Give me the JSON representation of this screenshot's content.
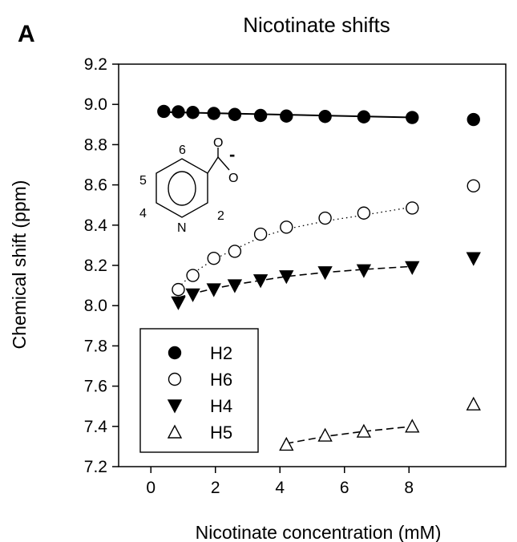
{
  "panel_label": "A",
  "chart_data": {
    "type": "scatter",
    "title": "Nicotinate shifts",
    "xlabel": "Nicotinate concentration (mM)",
    "ylabel": "Chemical shift (ppm)",
    "xlim": [
      -1,
      11
    ],
    "ylim": [
      7.2,
      9.2
    ],
    "x_ticks": [
      0,
      2,
      4,
      6,
      8
    ],
    "x_tick_labels": [
      "0",
      "2",
      "4",
      "6",
      "8"
    ],
    "y_ticks": [
      7.2,
      7.4,
      7.6,
      7.8,
      8.0,
      8.2,
      8.4,
      8.6,
      8.8,
      9.0,
      9.2
    ],
    "y_tick_labels": [
      "7.2",
      "7.4",
      "7.6",
      "7.8",
      "8.0",
      "8.2",
      "8.4",
      "8.6",
      "8.8",
      "9.0",
      "9.2"
    ],
    "grid": false,
    "legend_position": "bottom-left",
    "series": [
      {
        "name": "H2",
        "marker": "circle-filled",
        "line": "solid",
        "color": "#000000",
        "x": [
          0.4,
          0.85,
          1.3,
          1.95,
          2.6,
          3.4,
          4.2,
          5.4,
          6.6,
          8.1,
          10.0
        ],
        "y": [
          8.965,
          8.963,
          8.96,
          8.955,
          8.95,
          8.945,
          8.942,
          8.94,
          8.938,
          8.935,
          8.925
        ],
        "fit_x": [
          0.4,
          8.1
        ],
        "fit_y": [
          8.962,
          8.935
        ]
      },
      {
        "name": "H6",
        "marker": "circle-open",
        "line": "dotted",
        "color": "#000000",
        "x": [
          0.85,
          1.3,
          1.95,
          2.6,
          3.4,
          4.2,
          5.4,
          6.6,
          8.1,
          10.0
        ],
        "y": [
          8.08,
          8.15,
          8.235,
          8.27,
          8.355,
          8.39,
          8.435,
          8.46,
          8.485,
          8.595
        ],
        "fit_x": [
          0.85,
          1.3,
          1.95,
          2.6,
          3.4,
          4.2,
          5.4,
          6.6,
          8.1
        ],
        "fit_y": [
          8.09,
          8.16,
          8.23,
          8.28,
          8.34,
          8.38,
          8.42,
          8.45,
          8.49
        ]
      },
      {
        "name": "H4",
        "marker": "triangle-down-filled",
        "line": "dashed",
        "color": "#000000",
        "x": [
          0.85,
          1.3,
          1.95,
          2.6,
          3.4,
          4.2,
          5.4,
          6.6,
          8.1,
          10.0
        ],
        "y": [
          8.015,
          8.055,
          8.08,
          8.1,
          8.125,
          8.145,
          8.165,
          8.175,
          8.19,
          8.235
        ],
        "fit_x": [
          0.85,
          1.3,
          1.95,
          2.6,
          3.4,
          4.2,
          5.4,
          6.6,
          8.1
        ],
        "fit_y": [
          8.04,
          8.06,
          8.085,
          8.105,
          8.125,
          8.145,
          8.165,
          8.18,
          8.195
        ]
      },
      {
        "name": "H5",
        "marker": "triangle-up-open",
        "line": "dashed",
        "color": "#000000",
        "x": [
          4.2,
          5.4,
          6.6,
          8.1,
          10.0
        ],
        "y": [
          7.31,
          7.355,
          7.375,
          7.4,
          7.51
        ],
        "fit_x": [
          4.2,
          5.4,
          6.6,
          8.1
        ],
        "fit_y": [
          7.315,
          7.35,
          7.375,
          7.4
        ]
      }
    ],
    "inset": {
      "numbers": [
        "6",
        "5",
        "4",
        "2"
      ],
      "atom_n": "N",
      "atom_o_top": "O",
      "atom_o_right": "O",
      "charge": "-"
    }
  }
}
